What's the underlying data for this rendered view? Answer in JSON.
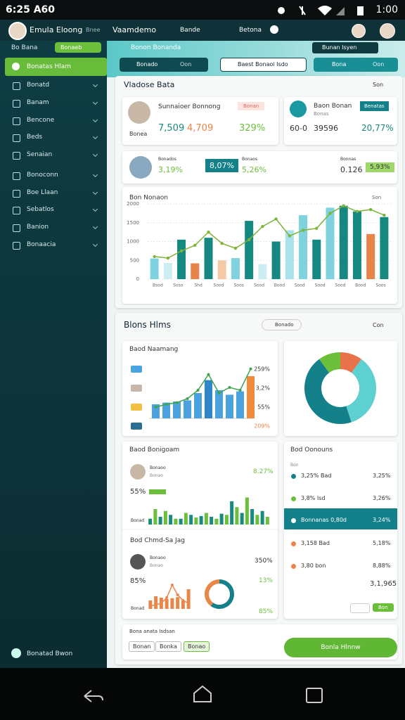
{
  "status_bar": {
    "time": "6:25 A60",
    "clock": "1:00"
  },
  "app_bar": {
    "user": "Emula Eloong",
    "tab": "Bnee",
    "menu": "Vaamdemo",
    "link": "Bande",
    "action": "Betona"
  },
  "sidebar": {
    "title": "Bo Bana",
    "button": "Bonaeb",
    "active": "Bonatas Hlam",
    "items": [
      "Bonatd",
      "Banam",
      "Bencone",
      "Beds",
      "Senaian",
      "Bonoconn",
      "Boe Llaan",
      "Sebatlos",
      "Banion",
      "Bonaacia"
    ],
    "footer": "Bonatad Bwon"
  },
  "toolbar": {
    "title": "Bonon Bonanda",
    "badge": "Bunan Isyen",
    "filters": [
      "Bonado",
      "Baest Bonaoi Isdo",
      "Bona"
    ],
    "filter_tail": [
      "Oon",
      "Oon"
    ]
  },
  "overview": {
    "title": "Vladose Bata",
    "more": "Son",
    "card1": {
      "name": "Sunnaioer Bonnong",
      "tag": "Bonan",
      "sub": "Bonea",
      "values": [
        "7,509",
        "4,709",
        "329%"
      ]
    },
    "card2": {
      "name": "Baon Bonan",
      "tag": "Benatas",
      "sub": "Bonas",
      "values": [
        "60-0",
        "39596",
        "20,77%"
      ]
    },
    "card3": {
      "labels": [
        "Bonados",
        "Bonaos",
        "Bonnas"
      ],
      "values": [
        "3,19%",
        "8,07%",
        "5,26%",
        "0.126",
        "5,93%"
      ]
    }
  },
  "main_chart": {
    "title": "Bon Nonaon",
    "more": "Son",
    "ylim": [
      0,
      2000
    ],
    "yticks": [
      0,
      500,
      1000,
      1500,
      2000
    ],
    "bars": [
      {
        "value": 550,
        "color": "#7fd3df"
      },
      {
        "value": 430,
        "color": "#cdeef0"
      },
      {
        "value": 1050,
        "color": "#15897f"
      },
      {
        "value": 420,
        "color": "#e8834a"
      },
      {
        "value": 1100,
        "color": "#15897f"
      },
      {
        "value": 500,
        "color": "#f3c9a8"
      },
      {
        "value": 560,
        "color": "#7fd3df"
      },
      {
        "value": 1550,
        "color": "#15897f"
      },
      {
        "value": 400,
        "color": "#cdeef0"
      },
      {
        "value": 1000,
        "color": "#15897f"
      },
      {
        "value": 1300,
        "color": "#a9e2ea"
      },
      {
        "value": 1700,
        "color": "#7fd3df"
      },
      {
        "value": 1050,
        "color": "#15897f"
      },
      {
        "value": 1900,
        "color": "#7fd3df"
      },
      {
        "value": 1950,
        "color": "#15897f"
      },
      {
        "value": 1800,
        "color": "#15897f"
      },
      {
        "value": 1200,
        "color": "#e8834a"
      },
      {
        "value": 1650,
        "color": "#15897f"
      }
    ],
    "line": {
      "color": "#7fb33a",
      "values": [
        600,
        560,
        750,
        900,
        1250,
        950,
        820,
        1050,
        1400,
        1600,
        1150,
        1300,
        1350,
        1750,
        1950,
        1800,
        1850,
        1700
      ]
    },
    "xlabels": [
      "Bsod",
      "Soso",
      "Shd",
      "Sood",
      "Soos",
      "Sood",
      "Bood",
      "Sood",
      "Sood",
      "Sood",
      "Bood",
      "Soos"
    ]
  },
  "section2": {
    "title": "Blons Hlms",
    "button": "Bonado",
    "more": "Con"
  },
  "card_a": {
    "title": "Baod Naamang",
    "labels": [
      "259%",
      "3,2%",
      "55%",
      "209%"
    ],
    "bars": [
      {
        "value": 25,
        "color": "#4aa3df"
      },
      {
        "value": 28,
        "color": "#4aa3df"
      },
      {
        "value": 30,
        "color": "#4aa3df"
      },
      {
        "value": 32,
        "color": "#4aa3df"
      },
      {
        "value": 45,
        "color": "#4aa3df"
      },
      {
        "value": 68,
        "color": "#2f86c8"
      },
      {
        "value": 50,
        "color": "#4aa3df"
      },
      {
        "value": 42,
        "color": "#4aa3df"
      },
      {
        "value": 48,
        "color": "#4aa3df"
      },
      {
        "value": 75,
        "color": "#f08a3c"
      }
    ],
    "line": {
      "color": "#3fa34d",
      "values": [
        20,
        25,
        28,
        35,
        50,
        78,
        45,
        55,
        50,
        88
      ]
    }
  },
  "donut": {
    "segments": [
      {
        "value": 10,
        "color": "#e8734a"
      },
      {
        "value": 35,
        "color": "#5fd0d0"
      },
      {
        "value": 45,
        "color": "#14808a"
      },
      {
        "value": 10,
        "color": "#6cbf3b"
      }
    ]
  },
  "card_b": {
    "title": "Baod Bonigoam",
    "row": "Bonaoo",
    "row_sub": "Bonao",
    "value": "8.27%",
    "left": "55%",
    "chip": "Bonad",
    "series": [
      {
        "color": "#1a8a7e",
        "values": [
          15,
          20,
          25,
          15,
          25,
          22,
          20,
          28,
          60,
          30,
          40,
          35
        ]
      },
      {
        "color": "#6cbf3b",
        "values": [
          40,
          35,
          15,
          30,
          18,
          30,
          15,
          25,
          45,
          70,
          25,
          20
        ]
      }
    ]
  },
  "card_c": {
    "title": "Bod Chmd-Sa Jag",
    "row": "Bonaoo",
    "row_sub": "Bonao",
    "values": [
      "350%",
      "85%",
      "13%",
      "85%"
    ],
    "chip": "Bonad",
    "bars": {
      "color": "#e8874a",
      "values": [
        30,
        45,
        40,
        35,
        38,
        42,
        30,
        70
      ]
    },
    "line": {
      "color": "#e8874a",
      "values": [
        10,
        15,
        20,
        40,
        85,
        50,
        30,
        20
      ]
    },
    "ring": {
      "segments": [
        {
          "value": 60,
          "color": "#14808a"
        },
        {
          "value": 40,
          "color": "#e8874a"
        }
      ]
    }
  },
  "list": {
    "title": "Bod Oonouns",
    "header": "Bon",
    "rows": [
      {
        "label": "3,25% Bad",
        "value": "3,25%"
      },
      {
        "label": "3,8% Isd",
        "value": "3,26%"
      },
      {
        "label": "Bonnanas 0,80d",
        "value": "3,24%"
      },
      {
        "label": "3,158 Bad",
        "value": "5,18%"
      },
      {
        "label": "3,80 bon",
        "value": "8,88%"
      }
    ],
    "total": "3,1,965",
    "button": "Bon"
  },
  "footer": {
    "title": "Bona anata Isdsan",
    "chips": [
      "Bonan",
      "Bonka",
      "Bonao"
    ],
    "button": "Bonla Hlnnw"
  }
}
